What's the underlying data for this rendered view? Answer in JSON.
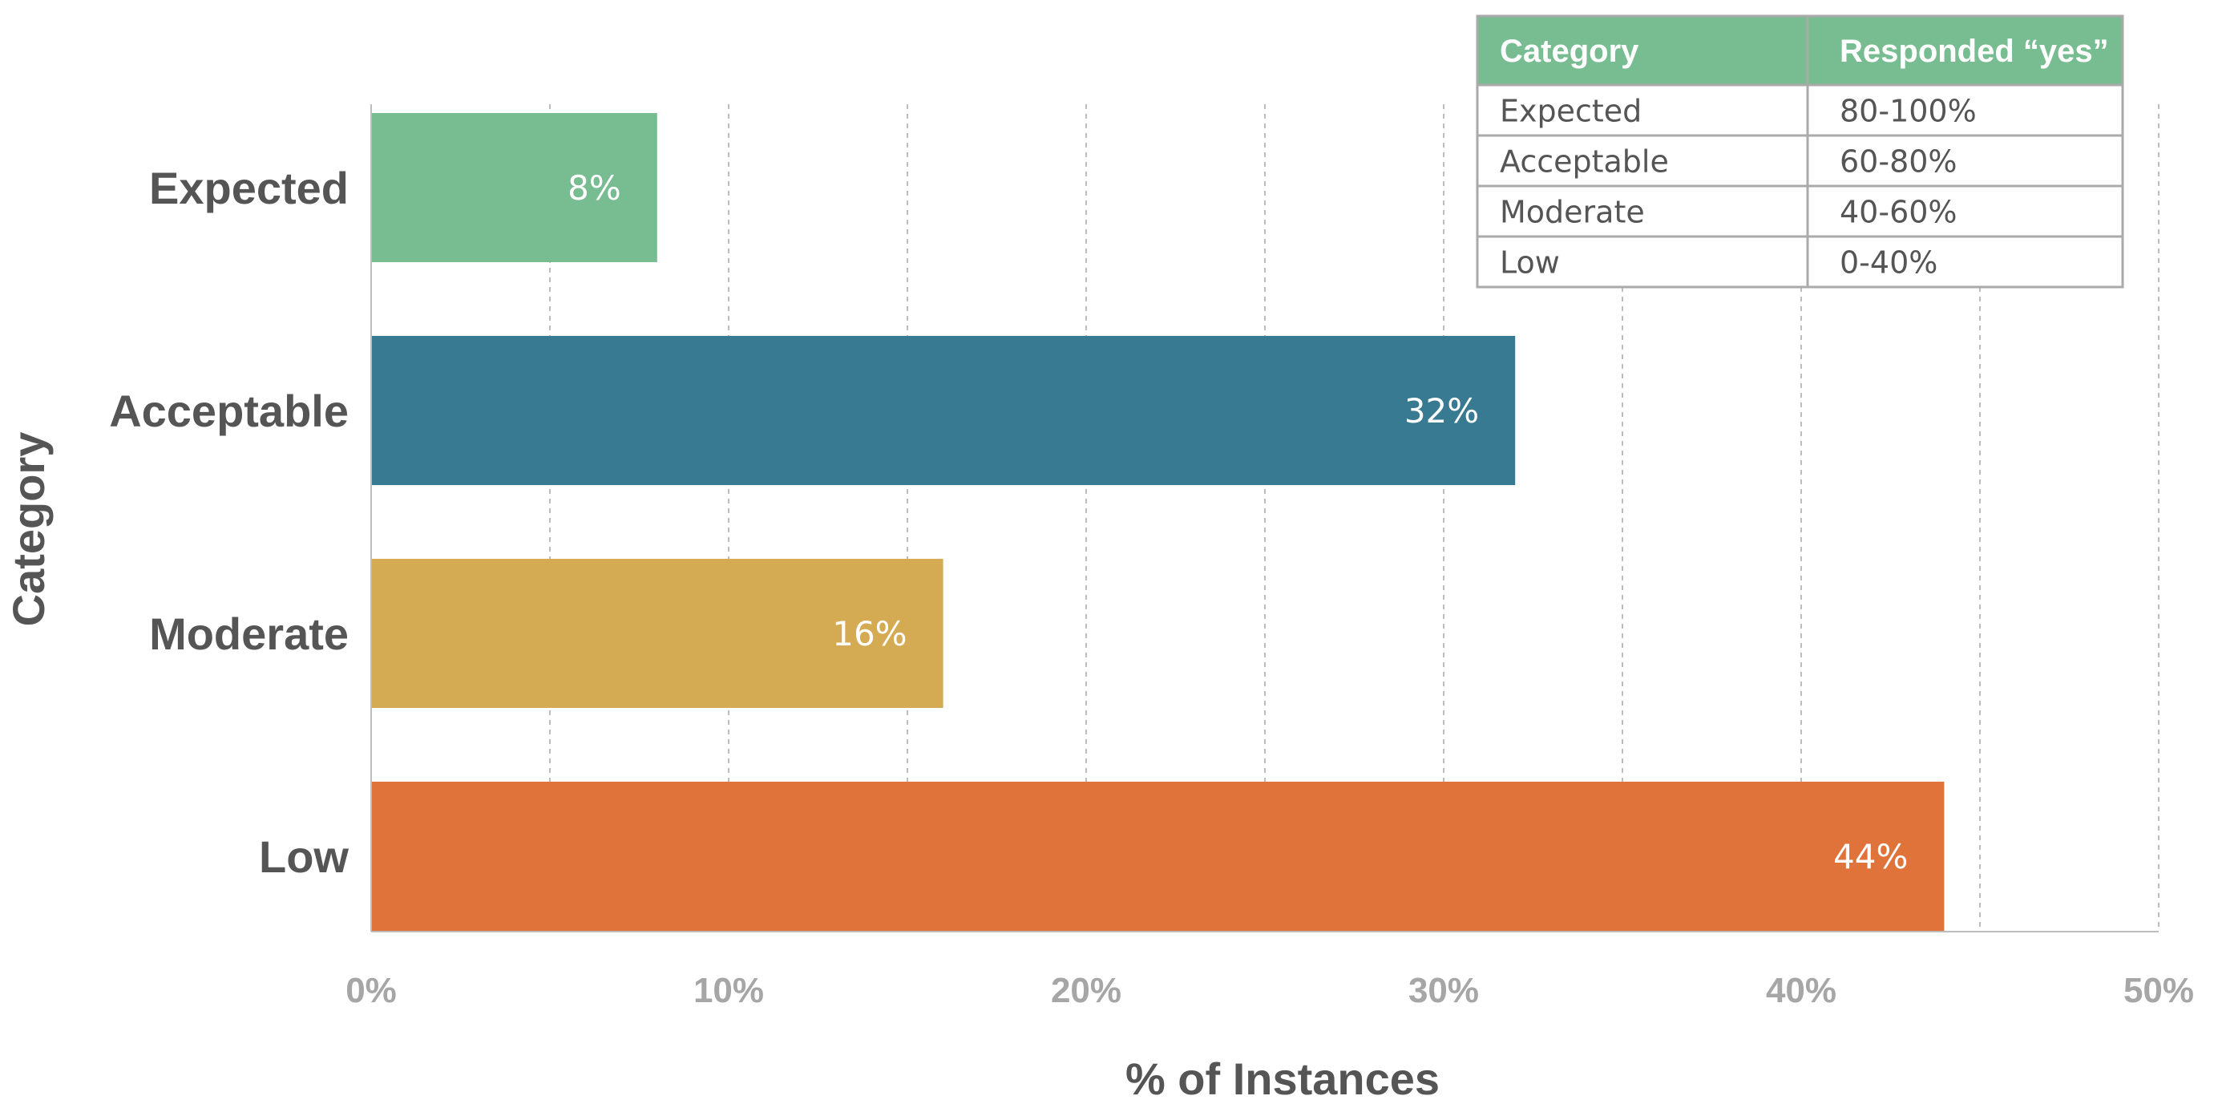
{
  "chart_data": {
    "type": "bar",
    "orientation": "horizontal",
    "categories": [
      "Expected",
      "Acceptable",
      "Moderate",
      "Low"
    ],
    "values": [
      8,
      32,
      16,
      44
    ],
    "value_labels": [
      "8%",
      "32%",
      "16%",
      "44%"
    ],
    "colors": [
      "#78bc91",
      "#387a92",
      "#d4ab52",
      "#e07339"
    ],
    "xlabel": "% of Instances",
    "ylabel": "Category",
    "xlim": [
      0,
      50
    ],
    "xticks": [
      0,
      10,
      20,
      30,
      40,
      50
    ],
    "xtick_labels": [
      "0%",
      "10%",
      "20%",
      "30%",
      "40%",
      "50%"
    ],
    "grid": "vertical dashed",
    "title": ""
  },
  "legend_table": {
    "header": [
      "Category",
      "Responded “yes”"
    ],
    "rows": [
      [
        "Expected",
        "80-100%"
      ],
      [
        "Acceptable",
        "60-80%"
      ],
      [
        "Moderate",
        "40-60%"
      ],
      [
        "Low",
        "0-40%"
      ]
    ],
    "header_color": "#78bc91",
    "border_color": "#aaaaaa"
  }
}
